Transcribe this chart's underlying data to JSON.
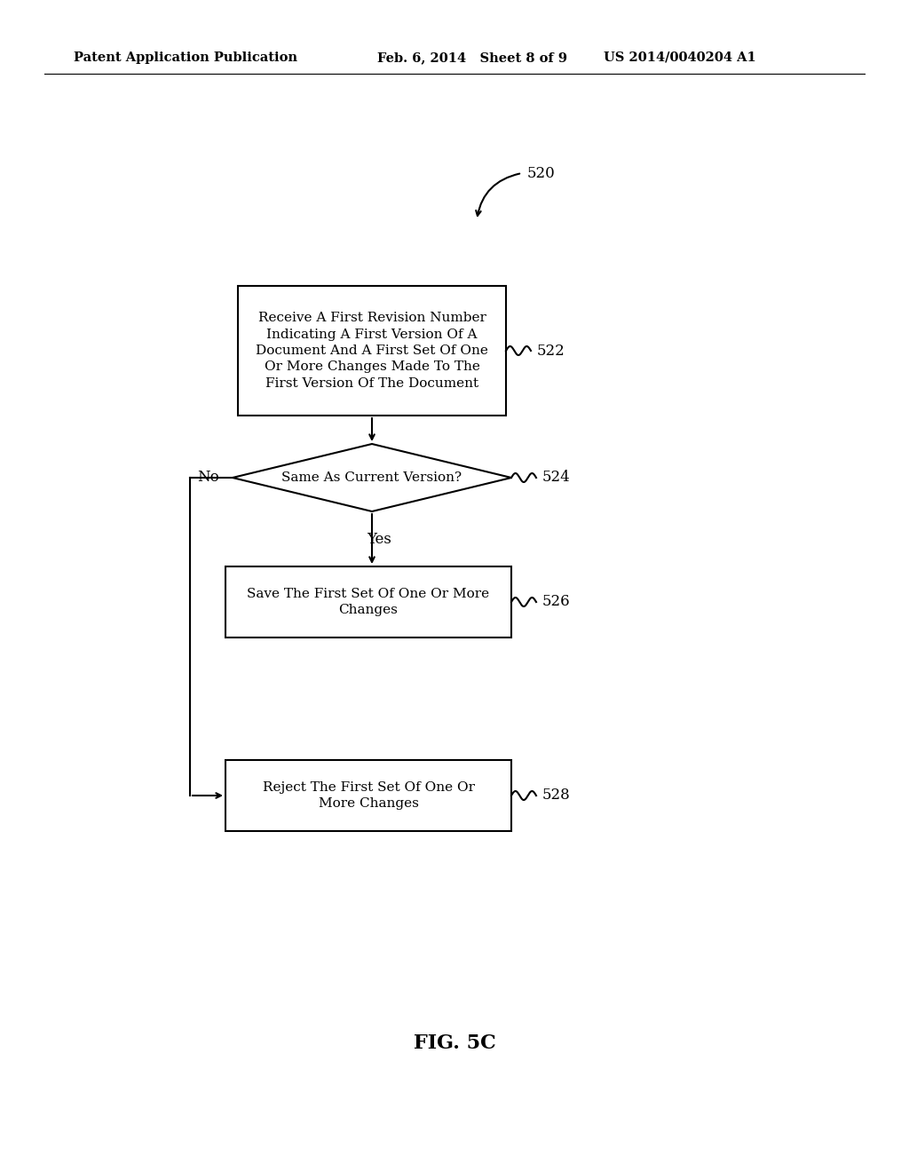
{
  "bg_color": "#ffffff",
  "header_left": "Patent Application Publication",
  "header_mid": "Feb. 6, 2014   Sheet 8 of 9",
  "header_right": "US 2014/0040204 A1",
  "fig_label": "FIG. 5C",
  "label_520": "520",
  "label_522": "522",
  "label_524": "524",
  "label_526": "526",
  "label_528": "528",
  "box522_text": "Receive A First Revision Number\nIndicating A First Version Of A\nDocument And A First Set Of One\nOr More Changes Made To The\nFirst Version Of The Document",
  "diamond524_text": "Same As Current Version?",
  "box526_text": "Save The First Set Of One Or More\nChanges",
  "box528_text": "Reject The First Set Of One Or\nMore Changes",
  "label_yes": "Yes",
  "label_no": "No",
  "font_size_body": 11,
  "font_size_header": 10.5,
  "font_size_fig": 16
}
